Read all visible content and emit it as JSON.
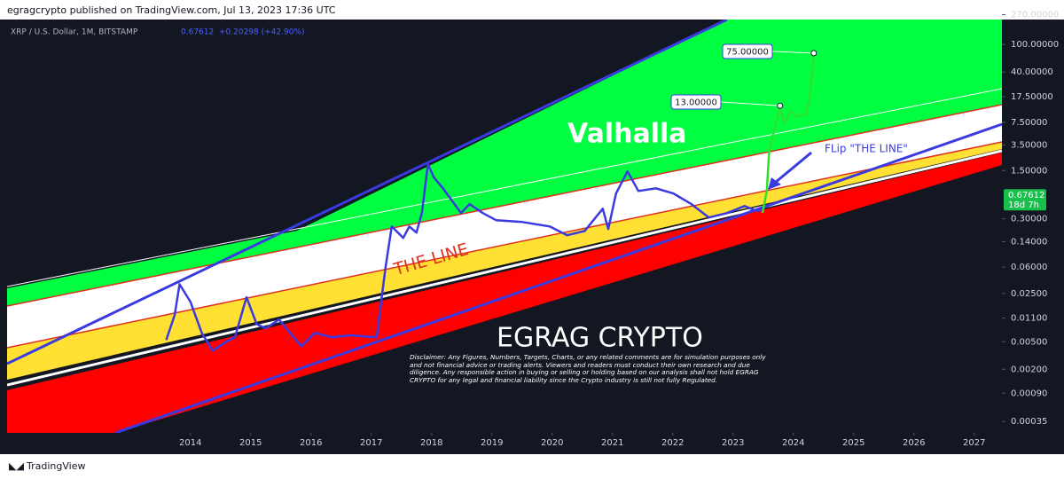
{
  "header": {
    "publisher": "egragcrypto published on TradingView.com, Jul 13, 2023 17:36 UTC",
    "symbol": "XRP / U.S. Dollar, 1M, BITSTAMP",
    "change": "+0.20298 (+42.90%)"
  },
  "footer": {
    "brand": "TradingView"
  },
  "chart_data": {
    "type": "line",
    "log_scale": true,
    "grid": false,
    "xlim": [
      2010.96,
      2027.46
    ],
    "xticks": [
      2014,
      2015,
      2016,
      2017,
      2018,
      2019,
      2020,
      2021,
      2022,
      2023,
      2024,
      2025,
      2026,
      2027
    ],
    "ylim": [
      0.00024,
      300
    ],
    "yticks": [
      {
        "value": 270,
        "label": "270.00000"
      },
      {
        "value": 100,
        "label": "100.00000"
      },
      {
        "value": 40,
        "label": "40.00000"
      },
      {
        "value": 17.5,
        "label": "17.50000"
      },
      {
        "value": 7.5,
        "label": "7.50000"
      },
      {
        "value": 3.5,
        "label": "3.50000"
      },
      {
        "value": 1.5,
        "label": "1.50000"
      },
      {
        "value": 0.3,
        "label": "0.30000"
      },
      {
        "value": 0.14,
        "label": "0.14000"
      },
      {
        "value": 0.06,
        "label": "0.06000"
      },
      {
        "value": 0.025,
        "label": "0.02500"
      },
      {
        "value": 0.011,
        "label": "0.01100"
      },
      {
        "value": 0.005,
        "label": "0.00500"
      },
      {
        "value": 0.002,
        "label": "0.00200"
      },
      {
        "value": 0.0009,
        "label": "0.00090"
      },
      {
        "value": 0.00035,
        "label": "0.00035"
      }
    ],
    "series": [
      {
        "color": "#3a3ae0",
        "x": [
          2013.6,
          2013.74,
          2013.82,
          2014.0,
          2014.19,
          2014.37,
          2014.59,
          2014.74,
          2014.93,
          2015.1,
          2015.25,
          2015.47,
          2015.84,
          2016.06,
          2016.35,
          2016.65,
          2017.09,
          2017.24,
          2017.34,
          2017.53,
          2017.63,
          2017.75,
          2017.84,
          2017.94,
          2018.04,
          2018.19,
          2018.49,
          2018.63,
          2018.85,
          2019.07,
          2019.51,
          2019.96,
          2020.25,
          2020.54,
          2020.84,
          2020.93,
          2021.06,
          2021.25,
          2021.43,
          2021.72,
          2022.01,
          2022.31,
          2022.6,
          2022.9,
          2023.19,
          2023.41,
          2023.56
        ],
        "values": [
          0.0053,
          0.0122,
          0.034,
          0.019,
          0.0067,
          0.0037,
          0.005,
          0.0058,
          0.022,
          0.009,
          0.0078,
          0.0105,
          0.0043,
          0.0067,
          0.0058,
          0.0062,
          0.0058,
          0.062,
          0.233,
          0.159,
          0.233,
          0.19,
          0.364,
          1.85,
          1.19,
          0.83,
          0.364,
          0.49,
          0.364,
          0.287,
          0.27,
          0.233,
          0.174,
          0.2,
          0.42,
          0.214,
          0.7,
          1.46,
          0.76,
          0.83,
          0.7,
          0.49,
          0.314,
          0.364,
          0.46,
          0.386,
          0.46
        ]
      },
      {
        "color": "#2fe02f",
        "x": [
          2023.49,
          2023.56,
          2023.6,
          2023.71,
          2023.78,
          2023.85,
          2023.96,
          2024.07,
          2024.22,
          2024.29,
          2024.34
        ],
        "values": [
          0.364,
          0.76,
          2.9,
          7.0,
          12.3,
          7.4,
          10.9,
          8.9,
          10,
          22.8,
          74.5
        ]
      }
    ],
    "current_price": 0.67612,
    "countdown": "18d 7h",
    "targets": [
      {
        "value": 75,
        "label": "75.00000",
        "x": 2024.34
      },
      {
        "value": 13,
        "label": "13.00000",
        "x": 2023.78
      }
    ],
    "annotations": {
      "zone": "Valhalla",
      "line": "THE LINE",
      "flip": "FLip \"THE LINE\"",
      "author": "EGRAG CRYPTO",
      "disclaimer": "Disclaimer: Any Figures, Numbers, Targets, Charts, or any related comments are for simulation purposes only and not financial advice or trading alerts. Viewers and readers must conduct their own research and due diligence. Any responsible action in buying or selling or holding based on our analysis shall not hold EGRAG CRYPTO for any legal and financial liability since the Crypto industry is still not fully Regulated."
    }
  }
}
